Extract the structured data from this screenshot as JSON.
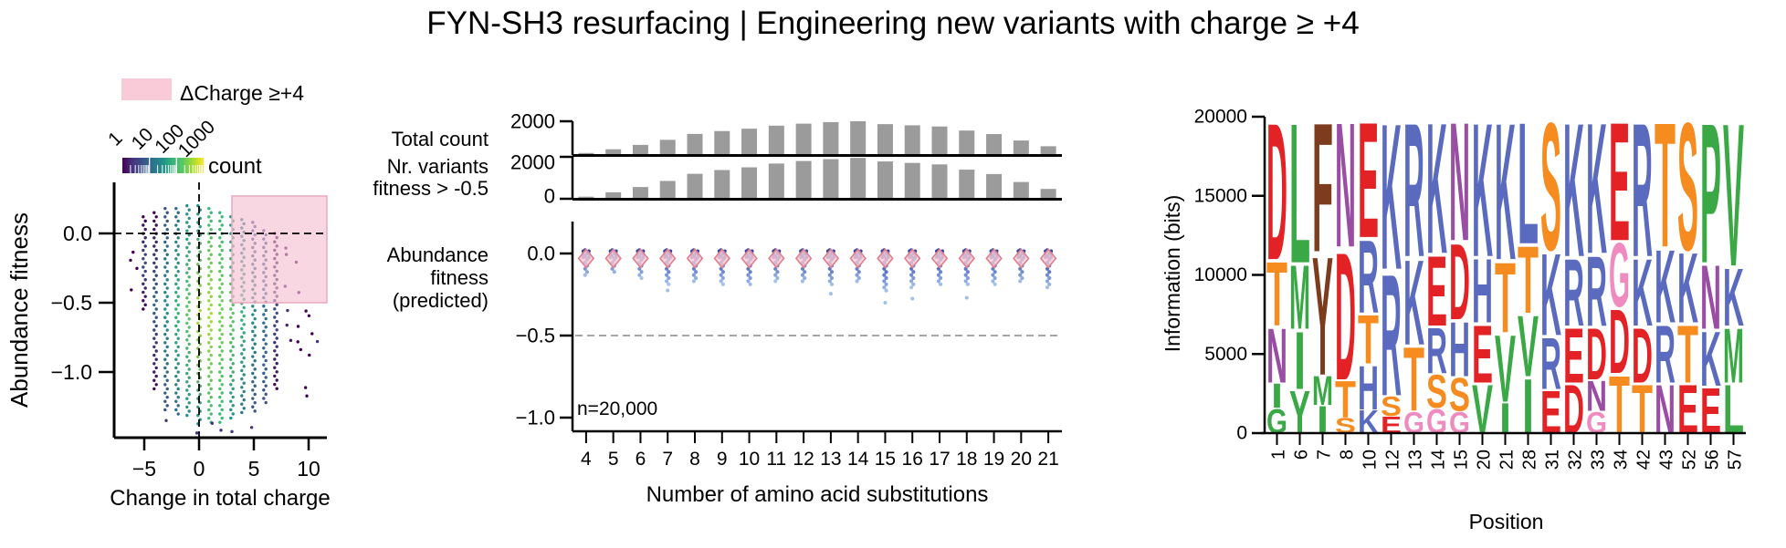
{
  "title": "FYN-SH3 resurfacing | Engineering new variants with charge ≥ +4",
  "chart_data": [
    {
      "id": "charge_scatter",
      "type": "scatter",
      "xlabel": "Change in total charge",
      "ylabel": "Abundance fitness",
      "xticks": [
        -5,
        0,
        5,
        10
      ],
      "yticks": [
        0,
        -0.5,
        -1
      ],
      "xlim": [
        -7.8,
        11.7
      ],
      "ylim": [
        -1.5,
        0.37
      ],
      "legend": {
        "label": "ΔCharge ≥+4",
        "swatch": "#f9cbd9"
      },
      "region": {
        "x0": 3,
        "x1": 11.7,
        "y0": -0.5,
        "y1": 0.27,
        "fill": "#f6bed0",
        "stroke": "#eba8bd"
      },
      "colorbar": {
        "label": "count",
        "ticks": [
          1,
          10,
          100,
          1000
        ],
        "palette": [
          "#440154",
          "#46327e",
          "#3b528b",
          "#2c728e",
          "#21918c",
          "#35b779",
          "#5ec962",
          "#aadc32",
          "#fde725"
        ]
      },
      "ref": {
        "h": 0,
        "v": 0
      },
      "strips": [
        {
          "x": -6,
          "ytop": -0.08,
          "ybot": -0.5,
          "sparse": true,
          "colors": [
            "#440154",
            "#440154",
            "#440154"
          ]
        },
        {
          "x": -5,
          "ytop": 0.12,
          "ybot": -0.55,
          "sparse": false,
          "colors": [
            "#440154",
            "#3b528b",
            "#440154"
          ]
        },
        {
          "x": -4,
          "ytop": 0.15,
          "ybot": -1.15,
          "sparse": false,
          "colors": [
            "#440154",
            "#31688e",
            "#440154"
          ]
        },
        {
          "x": -3,
          "ytop": 0.18,
          "ybot": -1.28,
          "sparse": false,
          "colors": [
            "#3b528b",
            "#21918c",
            "#3b528b"
          ]
        },
        {
          "x": -2,
          "ytop": 0.18,
          "ybot": -1.32,
          "sparse": false,
          "colors": [
            "#31688e",
            "#35b779",
            "#31688e"
          ]
        },
        {
          "x": -1,
          "ytop": 0.2,
          "ybot": -1.33,
          "sparse": false,
          "colors": [
            "#21918c",
            "#5ec962",
            "#21918c"
          ]
        },
        {
          "x": 0,
          "ytop": 0.2,
          "ybot": -1.38,
          "sparse": false,
          "colors": [
            "#21918c",
            "#aadc32",
            "#21918c"
          ]
        },
        {
          "x": 1,
          "ytop": 0.18,
          "ybot": -1.38,
          "sparse": false,
          "colors": [
            "#35b779",
            "#aadc32",
            "#35b779"
          ]
        },
        {
          "x": 2,
          "ytop": 0.15,
          "ybot": -1.38,
          "sparse": false,
          "colors": [
            "#35b779",
            "#7ad151",
            "#35b779"
          ]
        },
        {
          "x": 3,
          "ytop": 0.12,
          "ybot": -1.35,
          "sparse": false,
          "colors": [
            "#21918c",
            "#5ec962",
            "#21918c"
          ]
        },
        {
          "x": 4,
          "ytop": 0.1,
          "ybot": -1.32,
          "sparse": false,
          "colors": [
            "#2c728e",
            "#35b779",
            "#2c728e"
          ]
        },
        {
          "x": 5,
          "ytop": 0.08,
          "ybot": -1.3,
          "sparse": false,
          "colors": [
            "#3b528b",
            "#21918c",
            "#3b528b"
          ]
        },
        {
          "x": 6,
          "ytop": 0.02,
          "ybot": -1.25,
          "sparse": false,
          "colors": [
            "#3b528b",
            "#2c728e",
            "#3b528b"
          ]
        },
        {
          "x": 7,
          "ytop": 0,
          "ybot": -1.15,
          "sparse": false,
          "colors": [
            "#440154",
            "#3b528b",
            "#440154"
          ]
        },
        {
          "x": 8,
          "ytop": -0.05,
          "ybot": -1.0,
          "sparse": true,
          "colors": [
            "#440154",
            "#46327e",
            "#440154"
          ]
        },
        {
          "x": 9,
          "ytop": -0.1,
          "ybot": -0.9,
          "sparse": true,
          "colors": [
            "#440154",
            "#440154",
            "#440154"
          ]
        },
        {
          "x": 10,
          "ytop": -0.55,
          "ybot": -1.25,
          "sparse": true,
          "colors": [
            "#440154",
            "#440154",
            "#440154"
          ]
        }
      ],
      "outliers": [
        {
          "x": -3,
          "y": -1.35
        },
        {
          "x": 1.2,
          "y": -1.37
        },
        {
          "x": 2,
          "y": -1.42
        },
        {
          "x": 3,
          "y": -1.43
        },
        {
          "x": -0.2,
          "y": -1.44
        },
        {
          "x": 4.8,
          "y": -1.4
        },
        {
          "x": 10.8,
          "y": -0.78
        }
      ]
    },
    {
      "id": "substitution_panel",
      "type": "bar",
      "categories": [
        4,
        5,
        6,
        7,
        8,
        9,
        10,
        11,
        12,
        13,
        14,
        15,
        16,
        17,
        18,
        19,
        20,
        21
      ],
      "xlabel": "Number of amino acid substitutions",
      "bar_color": "#9b9b9b",
      "rows": [
        {
          "label_lines": [
            "Total count"
          ],
          "ymax": 2000,
          "yticks": [
            2000
          ],
          "values": [
            120,
            340,
            600,
            900,
            1250,
            1420,
            1560,
            1740,
            1860,
            1950,
            2000,
            1830,
            1760,
            1690,
            1450,
            1240,
            860,
            520
          ]
        },
        {
          "label_lines": [
            "Nr. variants",
            "fitness > -0.5"
          ],
          "ymax": 2000,
          "yticks": [
            2000,
            0
          ],
          "values": [
            100,
            310,
            560,
            850,
            1190,
            1370,
            1500,
            1680,
            1800,
            1890,
            1950,
            1780,
            1710,
            1640,
            1390,
            1180,
            800,
            470
          ]
        }
      ],
      "violin": {
        "label_lines": [
          "Abundance",
          "fitness",
          "(predicted)"
        ],
        "yticks": [
          0,
          -0.5,
          -1
        ],
        "ylim": [
          -1.08,
          0.19
        ],
        "dashed_y": -0.5,
        "annotation": "n=20,000",
        "diamond": {
          "y": -0.03,
          "fill": "#f8cbd4",
          "stroke": "#df7e8e"
        },
        "tail_colors": [
          "#2f449e",
          "#5672c4",
          "#a8c4ea"
        ],
        "tail_depths": [
          -0.14,
          -0.13,
          -0.15,
          -0.19,
          -0.18,
          -0.19,
          -0.2,
          -0.17,
          -0.18,
          -0.2,
          -0.18,
          -0.24,
          -0.21,
          -0.2,
          -0.2,
          -0.19,
          -0.18,
          -0.21
        ],
        "outliers": [
          {
            "i": 3,
            "y": -0.225
          },
          {
            "i": 9,
            "y": -0.245
          },
          {
            "i": 11,
            "y": -0.3
          },
          {
            "i": 12,
            "y": -0.275
          },
          {
            "i": 14,
            "y": -0.27
          }
        ]
      }
    },
    {
      "id": "sequence_logo",
      "type": "logo",
      "ylabel": "Information (bits)",
      "xlabel": "Position",
      "yticks": [
        0,
        5000,
        10000,
        15000,
        20000
      ],
      "ylim": [
        0,
        20000
      ],
      "palette": {
        "D": "#e32226",
        "E": "#e32226",
        "K": "#5a6abf",
        "R": "#5a6abf",
        "H": "#5a6abf",
        "N": "#9a4ea3",
        "Q": "#9a4ea3",
        "S": "#f68b1f",
        "T": "#f68b1f",
        "G": "#ef8bbf",
        "L": "#39a845",
        "V": "#39a845",
        "I": "#39a845",
        "M": "#39a845",
        "P": "#39a845",
        "A": "#39a845",
        "C": "#39a845",
        "F": "#7d3c1e",
        "Y": "#7d3c1e",
        "W": "#7d3c1e"
      },
      "columns": [
        {
          "pos": 1,
          "stack": [
            [
              "D",
              9000
            ],
            [
              "T",
              4200
            ],
            [
              "N",
              3600
            ],
            [
              "I",
              1600
            ],
            [
              "G",
              1600,
              "#39a845"
            ]
          ]
        },
        {
          "pos": 6,
          "stack": [
            [
              "L",
              9200
            ],
            [
              "M",
              4200
            ],
            [
              "I",
              3800
            ],
            [
              "Y",
              2800,
              "#39a845"
            ]
          ]
        },
        {
          "pos": 7,
          "stack": [
            [
              "F",
              8500
            ],
            [
              "Y",
              7800
            ],
            [
              "M",
              1900
            ],
            [
              "I",
              1800
            ]
          ]
        },
        {
          "pos": 8,
          "stack": [
            [
              "N",
              8200
            ],
            [
              "D",
              8400
            ],
            [
              "T",
              2400
            ],
            [
              "S",
              1000
            ]
          ]
        },
        {
          "pos": 10,
          "stack": [
            [
              "E",
              7600
            ],
            [
              "R",
              4800
            ],
            [
              "T",
              3200
            ],
            [
              "H",
              2900
            ],
            [
              "K",
              1500
            ]
          ]
        },
        {
          "pos": 12,
          "stack": [
            [
              "K",
              9600
            ],
            [
              "R",
              8000
            ],
            [
              "S",
              1300
            ],
            [
              "E",
              1100
            ]
          ]
        },
        {
          "pos": 13,
          "stack": [
            [
              "R",
              8800
            ],
            [
              "K",
              5600
            ],
            [
              "T",
              4200
            ],
            [
              "G",
              1400
            ]
          ]
        },
        {
          "pos": 14,
          "stack": [
            [
              "K",
              8600
            ],
            [
              "E",
              4600
            ],
            [
              "R",
              3000
            ],
            [
              "S",
              2200
            ],
            [
              "G",
              1600
            ]
          ]
        },
        {
          "pos": 15,
          "stack": [
            [
              "N",
              7800
            ],
            [
              "D",
              5000
            ],
            [
              "H",
              3600
            ],
            [
              "S",
              2200
            ],
            [
              "G",
              1400
            ]
          ]
        },
        {
          "pos": 20,
          "stack": [
            [
              "K",
              8800
            ],
            [
              "H",
              4200
            ],
            [
              "E",
              3800
            ],
            [
              "V",
              3200
            ]
          ]
        },
        {
          "pos": 21,
          "stack": [
            [
              "K",
              9000
            ],
            [
              "T",
              4600
            ],
            [
              "V",
              4400
            ],
            [
              "I",
              2000
            ]
          ]
        },
        {
          "pos": 28,
          "stack": [
            [
              "L",
              8000,
              "#5a6abf"
            ],
            [
              "T",
              4400
            ],
            [
              "V",
              4000
            ],
            [
              "I",
              3600
            ]
          ]
        },
        {
          "pos": 31,
          "stack": [
            [
              "S",
              8400
            ],
            [
              "K",
              5400
            ],
            [
              "R",
              3400
            ],
            [
              "E",
              2800
            ]
          ]
        },
        {
          "pos": 32,
          "stack": [
            [
              "K",
              8800
            ],
            [
              "R",
              4400
            ],
            [
              "E",
              3600
            ],
            [
              "D",
              3200
            ]
          ]
        },
        {
          "pos": 33,
          "stack": [
            [
              "K",
              8600
            ],
            [
              "R",
              4600
            ],
            [
              "D",
              3400
            ],
            [
              "N",
              2000
            ],
            [
              "G",
              1400
            ]
          ]
        },
        {
          "pos": 34,
          "stack": [
            [
              "E",
              7800
            ],
            [
              "G",
              4200
            ],
            [
              "D",
              4200
            ],
            [
              "T",
              3800
            ]
          ]
        },
        {
          "pos": 42,
          "stack": [
            [
              "R",
              8800
            ],
            [
              "K",
              4400
            ],
            [
              "D",
              3600
            ],
            [
              "T",
              3200
            ]
          ]
        },
        {
          "pos": 43,
          "stack": [
            [
              "T",
              8200
            ],
            [
              "K",
              4800
            ],
            [
              "R",
              3800
            ],
            [
              "N",
              3200
            ]
          ]
        },
        {
          "pos": 52,
          "stack": [
            [
              "S",
              8400
            ],
            [
              "K",
              4600
            ],
            [
              "T",
              3800
            ],
            [
              "E",
              3200
            ]
          ]
        },
        {
          "pos": 56,
          "stack": [
            [
              "P",
              9200
            ],
            [
              "N",
              4200
            ],
            [
              "K",
              3600
            ],
            [
              "E",
              3000
            ]
          ]
        },
        {
          "pos": 57,
          "stack": [
            [
              "V",
              9400
            ],
            [
              "K",
              3800
            ],
            [
              "M",
              3600
            ],
            [
              "L",
              3200
            ]
          ]
        }
      ]
    }
  ]
}
